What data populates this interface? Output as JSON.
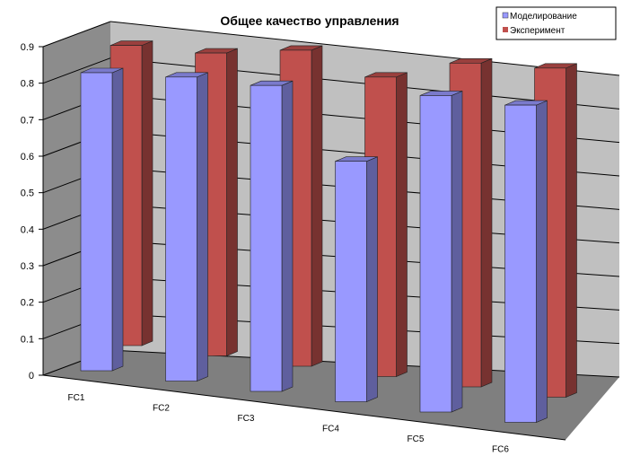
{
  "chart_data": {
    "type": "bar",
    "title": "Общее качество управления",
    "categories": [
      "FC1",
      "FC2",
      "FC3",
      "FC4",
      "FC5",
      "FC6"
    ],
    "series": [
      {
        "name": "Моделирование",
        "color": "#9999ff",
        "values": [
          0.83,
          0.82,
          0.8,
          0.61,
          0.78,
          0.76
        ]
      },
      {
        "name": "Эксперимент",
        "color": "#c0504d",
        "values": [
          0.88,
          0.86,
          0.87,
          0.8,
          0.84,
          0.83
        ]
      }
    ],
    "yticks": [
      "0",
      "0.1",
      "0.2",
      "0.3",
      "0.4",
      "0.5",
      "0.6",
      "0.7",
      "0.8",
      "0.9"
    ],
    "ylim": [
      0,
      0.9
    ],
    "xlabel": "",
    "ylabel": "",
    "grid": true,
    "legend": "top-right"
  }
}
